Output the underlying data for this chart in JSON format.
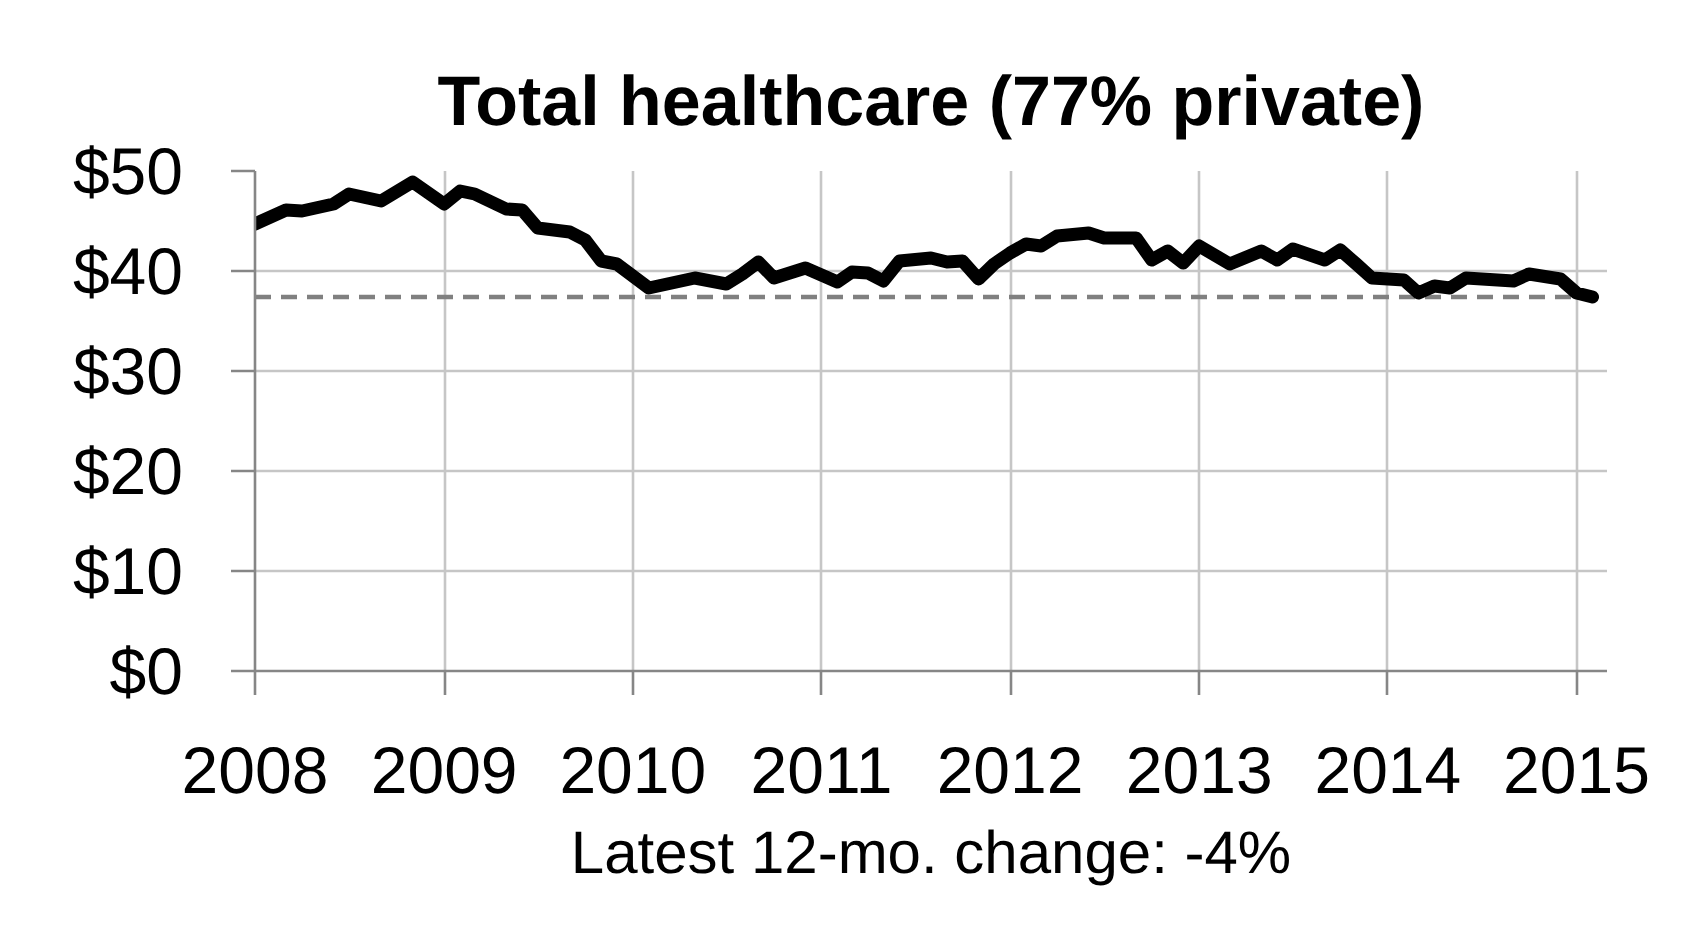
{
  "chart_data": {
    "type": "line",
    "title": "Total healthcare (77% private)",
    "x": [
      "2008-01",
      "2008-03",
      "2008-04",
      "2008-06",
      "2008-07",
      "2008-09",
      "2008-11",
      "2009-01",
      "2009-02",
      "2009-03",
      "2009-05",
      "2009-06",
      "2009-07",
      "2009-09",
      "2009-10",
      "2009-11",
      "2009-12",
      "2010-02",
      "2010-05",
      "2010-07",
      "2010-08",
      "2010-09",
      "2010-10",
      "2010-12",
      "2011-02",
      "2011-03",
      "2011-04",
      "2011-05",
      "2011-06",
      "2011-08",
      "2011-09",
      "2011-10",
      "2011-11",
      "2011-12",
      "2012-01",
      "2012-02",
      "2012-03",
      "2012-04",
      "2012-06",
      "2012-07",
      "2012-09",
      "2012-10",
      "2012-11",
      "2012-12",
      "2013-01",
      "2013-03",
      "2013-05",
      "2013-06",
      "2013-07",
      "2013-09",
      "2013-10",
      "2013-11",
      "2013-12",
      "2014-02",
      "2014-03",
      "2014-04",
      "2014-05",
      "2014-06",
      "2014-09",
      "2014-10",
      "2014-12",
      "2015-01",
      "2015-02"
    ],
    "series": [
      {
        "color": "#000000",
        "values": [
          44.7,
          46.1,
          46.0,
          46.7,
          47.7,
          47.0,
          48.9,
          46.7,
          48.0,
          47.7,
          46.2,
          46.1,
          44.3,
          43.9,
          43.1,
          41.0,
          40.7,
          38.3,
          39.3,
          38.7,
          39.7,
          40.9,
          39.3,
          40.3,
          38.9,
          39.9,
          39.8,
          39.0,
          41.0,
          41.3,
          40.9,
          41.0,
          39.2,
          40.7,
          41.8,
          42.7,
          42.5,
          43.5,
          43.8,
          43.3,
          43.3,
          41.1,
          42.0,
          40.8,
          42.5,
          40.7,
          42.0,
          41.1,
          42.2,
          41.1,
          42.1,
          40.7,
          39.3,
          39.1,
          37.8,
          38.5,
          38.3,
          39.3,
          39.0,
          39.7,
          39.2,
          37.8,
          37.4
        ]
      }
    ],
    "xlim": [
      "2008-01",
      "2015-03"
    ],
    "xticks": [
      "2008",
      "2009",
      "2010",
      "2011",
      "2012",
      "2013",
      "2014",
      "2015"
    ],
    "ylim": [
      0,
      50
    ],
    "yticks": [
      {
        "value": 0,
        "label": "$0"
      },
      {
        "value": 10,
        "label": "$10"
      },
      {
        "value": 20,
        "label": "$20"
      },
      {
        "value": 30,
        "label": "$30"
      },
      {
        "value": 40,
        "label": "$40"
      },
      {
        "value": 50,
        "label": "$50"
      }
    ],
    "grid": true,
    "line_style": "solid",
    "ref_lines": [
      {
        "axis": "y",
        "value": 37.4,
        "color": "#808080",
        "line_style": "dashed"
      }
    ],
    "annotations": [
      "Latest 12-mo. change: -4%"
    ]
  }
}
